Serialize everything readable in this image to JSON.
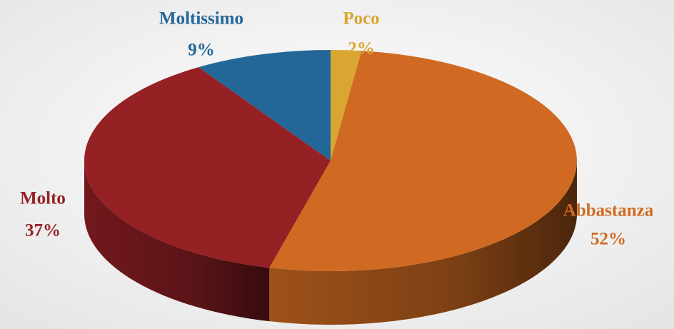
{
  "chart_data": {
    "type": "pie",
    "categories": [
      "Poco",
      "Abbastanza",
      "Molto",
      "Moltissimo"
    ],
    "values": [
      2,
      52,
      37,
      9
    ],
    "value_labels": [
      "2%",
      "52%",
      "37%",
      "9%"
    ],
    "colors": [
      "#d9a631",
      "#d06a22",
      "#962125",
      "#236698"
    ]
  }
}
